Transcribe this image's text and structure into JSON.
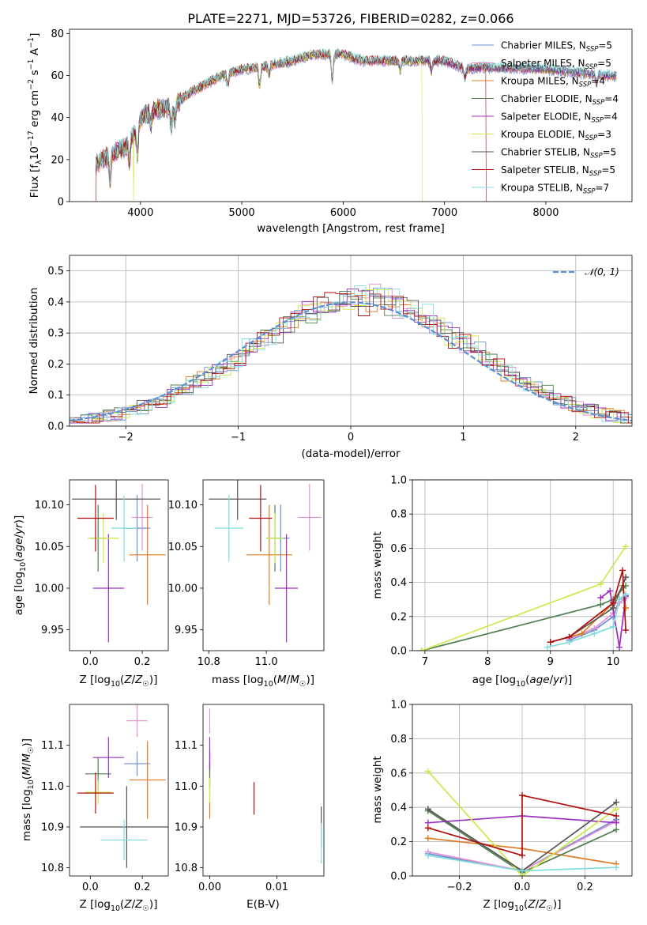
{
  "figure": {
    "title": "PLATE=2271, MJD=53726, FIBERID=0282, z=0.066",
    "colors": {
      "Chabrier MILES": "#6b8fd6",
      "Salpeter MILES": "#e58fd0",
      "Kroupa MILES": "#e07b20",
      "Chabrier ELODIE": "#4f7f4f",
      "Salpeter ELODIE": "#9b30c0",
      "Kroupa ELODIE": "#cde84a",
      "Chabrier STELIB": "#555555",
      "Salpeter STELIB": "#b01010",
      "Kroupa STELIB": "#80dcdc"
    }
  },
  "chart_data": [
    {
      "id": "spectrum",
      "type": "line",
      "xlabel": "wavelength [Angstrom, rest frame]",
      "ylabel": "Flux [fλ10⁻¹⁷ erg cm⁻² s⁻¹ A⁻¹]",
      "xlim": [
        3300,
        8850
      ],
      "ylim": [
        0,
        82
      ],
      "xticks": [
        4000,
        5000,
        6000,
        7000,
        8000
      ],
      "yticks": [
        0,
        20,
        40,
        60,
        80
      ],
      "legend_position": "top-right",
      "legend": [
        {
          "name": "Chabrier MILES",
          "n": "5"
        },
        {
          "name": "Salpeter MILES",
          "n": "5"
        },
        {
          "name": "Kroupa MILES",
          "n": "4"
        },
        {
          "name": "Chabrier ELODIE",
          "n": "4"
        },
        {
          "name": "Salpeter ELODIE",
          "n": "4"
        },
        {
          "name": "Kroupa ELODIE",
          "n": "3"
        },
        {
          "name": "Chabrier STELIB",
          "n": "5"
        },
        {
          "name": "Salpeter STELIB",
          "n": "5"
        },
        {
          "name": "Kroupa STELIB",
          "n": "7"
        }
      ],
      "legend_prefix": "N",
      "legend_sub": "SSP",
      "continuum": [
        [
          3560,
          18
        ],
        [
          3700,
          22
        ],
        [
          3850,
          26
        ],
        [
          3950,
          33
        ],
        [
          4000,
          40
        ],
        [
          4150,
          44
        ],
        [
          4300,
          45
        ],
        [
          4500,
          52
        ],
        [
          4800,
          60
        ],
        [
          5000,
          63
        ],
        [
          5200,
          64
        ],
        [
          5500,
          67
        ],
        [
          5700,
          70
        ],
        [
          6000,
          70
        ],
        [
          6200,
          67
        ],
        [
          6500,
          67
        ],
        [
          6800,
          67
        ],
        [
          7000,
          67
        ],
        [
          7200,
          63
        ],
        [
          7400,
          64
        ],
        [
          8000,
          63
        ],
        [
          8600,
          60
        ]
      ],
      "absorption_lines": [
        [
          3700,
          12
        ],
        [
          3890,
          10
        ],
        [
          3970,
          14
        ],
        [
          4102,
          7
        ],
        [
          4305,
          10
        ],
        [
          4340,
          8
        ],
        [
          4861,
          6
        ],
        [
          5175,
          9
        ],
        [
          5270,
          4
        ],
        [
          5893,
          12
        ],
        [
          6563,
          5
        ],
        [
          6870,
          5
        ],
        [
          7200,
          4
        ],
        [
          8500,
          4
        ]
      ],
      "dropouts": [
        {
          "series": "Kroupa ELODIE",
          "start": 3930,
          "end": 6780
        },
        {
          "series": "Salpeter STELIB",
          "start": 3560,
          "end": 7410
        }
      ]
    },
    {
      "id": "residuals",
      "type": "histogram",
      "xlabel": "(data-model)/error",
      "ylabel": "Normed distribution",
      "xlim": [
        -2.5,
        2.5
      ],
      "ylim": [
        0,
        0.55
      ],
      "xticks": [
        -2,
        -1,
        0,
        1,
        2
      ],
      "yticks": [
        0.0,
        0.1,
        0.2,
        0.3,
        0.4,
        0.5
      ],
      "bin_width": 0.1,
      "grid": true,
      "legend_position": "top-right",
      "reference_curve": {
        "name": "𝒩(0, 1)",
        "color": "#5b8fd8",
        "mean": 0,
        "sigma": 1
      }
    },
    {
      "id": "age-vs-Z",
      "type": "errorbar",
      "xlabel": "Z [log10(Z/Z☉)]",
      "ylabel": "age  [log10(age/yr)]",
      "xlim": [
        -0.08,
        0.3
      ],
      "ylim": [
        9.925,
        10.13
      ],
      "xticks": [
        0.0,
        0.2
      ],
      "yticks": [
        9.95,
        10.0,
        10.05,
        10.1
      ],
      "grid": false,
      "points": [
        {
          "series": "Chabrier MILES",
          "x": 0.18,
          "xerr": 0.05,
          "y": 10.072,
          "yerr": 0.04
        },
        {
          "series": "Salpeter MILES",
          "x": 0.2,
          "xerr": 0.04,
          "y": 10.085,
          "yerr": 0.04
        },
        {
          "series": "Kroupa MILES",
          "x": 0.22,
          "xerr": 0.07,
          "y": 10.04,
          "yerr": 0.06
        },
        {
          "series": "Chabrier ELODIE",
          "x": 0.03,
          "xerr": 0.03,
          "y": 10.06,
          "yerr": 0.04
        },
        {
          "series": "Salpeter ELODIE",
          "x": 0.07,
          "xerr": 0.06,
          "y": 10.0,
          "yerr": 0.065
        },
        {
          "series": "Kroupa ELODIE",
          "x": 0.05,
          "xerr": 0.06,
          "y": 10.06,
          "yerr": 0.03
        },
        {
          "series": "Chabrier STELIB",
          "x": 0.1,
          "xerr": 0.17,
          "y": 10.107,
          "yerr": 0.025
        },
        {
          "series": "Salpeter STELIB",
          "x": 0.02,
          "xerr": 0.07,
          "y": 10.084,
          "yerr": 0.04
        },
        {
          "series": "Kroupa STELIB",
          "x": 0.13,
          "xerr": 0.05,
          "y": 10.072,
          "yerr": 0.04
        }
      ]
    },
    {
      "id": "age-vs-mass",
      "type": "errorbar",
      "xlabel": "mass [log10(M/M☉)]",
      "ylabel": "",
      "xlim": [
        10.78,
        11.2
      ],
      "ylim": [
        9.925,
        10.13
      ],
      "xticks": [
        10.8,
        11.0
      ],
      "yticks": [
        9.95,
        10.0,
        10.05,
        10.1
      ],
      "grid": false,
      "points": [
        {
          "series": "Chabrier MILES",
          "x": 11.05,
          "xerr": 0.03,
          "y": 10.06,
          "yerr": 0.04
        },
        {
          "series": "Salpeter MILES",
          "x": 11.15,
          "xerr": 0.04,
          "y": 10.085,
          "yerr": 0.04
        },
        {
          "series": "Kroupa MILES",
          "x": 11.01,
          "xerr": 0.08,
          "y": 10.04,
          "yerr": 0.06
        },
        {
          "series": "Chabrier ELODIE",
          "x": 11.03,
          "xerr": 0.03,
          "y": 10.06,
          "yerr": 0.04
        },
        {
          "series": "Salpeter ELODIE",
          "x": 11.07,
          "xerr": 0.04,
          "y": 10.0,
          "yerr": 0.065
        },
        {
          "series": "Kroupa ELODIE",
          "x": 11.03,
          "xerr": 0.03,
          "y": 10.06,
          "yerr": 0.03
        },
        {
          "series": "Chabrier STELIB",
          "x": 10.9,
          "xerr": 0.1,
          "y": 10.107,
          "yerr": 0.025
        },
        {
          "series": "Salpeter STELIB",
          "x": 10.98,
          "xerr": 0.04,
          "y": 10.084,
          "yerr": 0.04
        },
        {
          "series": "Kroupa STELIB",
          "x": 10.87,
          "xerr": 0.05,
          "y": 10.072,
          "yerr": 0.04
        }
      ]
    },
    {
      "id": "weight-vs-age",
      "type": "line",
      "xlabel": "age  [log10(age/yr)]",
      "ylabel": "mass weight",
      "xlim": [
        6.8,
        10.3
      ],
      "ylim": [
        0,
        1
      ],
      "xticks": [
        7,
        8,
        9,
        10
      ],
      "yticks": [
        0.0,
        0.2,
        0.4,
        0.6,
        0.8,
        1.0
      ],
      "grid": true,
      "series": [
        {
          "name": "Chabrier MILES",
          "points": [
            [
              9.3,
              0.06
            ],
            [
              9.7,
              0.12
            ],
            [
              10.0,
              0.2
            ],
            [
              10.1,
              0.3
            ],
            [
              10.2,
              0.32
            ]
          ]
        },
        {
          "name": "Salpeter MILES",
          "points": [
            [
              9.3,
              0.07
            ],
            [
              9.7,
              0.13
            ],
            [
              10.0,
              0.22
            ],
            [
              10.1,
              0.28
            ],
            [
              10.2,
              0.31
            ]
          ]
        },
        {
          "name": "Kroupa MILES",
          "points": [
            [
              9.0,
              0.05
            ],
            [
              9.5,
              0.1
            ],
            [
              10.0,
              0.28
            ],
            [
              10.15,
              0.38
            ],
            [
              10.2,
              0.25
            ]
          ]
        },
        {
          "name": "Chabrier ELODIE",
          "points": [
            [
              6.95,
              0.0
            ],
            [
              9.8,
              0.27
            ],
            [
              10.0,
              0.3
            ],
            [
              10.2,
              0.38
            ]
          ]
        },
        {
          "name": "Salpeter ELODIE",
          "points": [
            [
              9.8,
              0.31
            ],
            [
              9.95,
              0.35
            ],
            [
              10.1,
              0.02
            ],
            [
              10.2,
              0.32
            ]
          ]
        },
        {
          "name": "Kroupa ELODIE",
          "points": [
            [
              6.95,
              0.0
            ],
            [
              9.8,
              0.39
            ],
            [
              10.2,
              0.61
            ]
          ]
        },
        {
          "name": "Chabrier STELIB",
          "points": [
            [
              9.0,
              0.05
            ],
            [
              9.3,
              0.08
            ],
            [
              10.0,
              0.25
            ],
            [
              10.2,
              0.43
            ]
          ]
        },
        {
          "name": "Salpeter STELIB",
          "points": [
            [
              9.0,
              0.05
            ],
            [
              9.3,
              0.08
            ],
            [
              10.0,
              0.28
            ],
            [
              10.15,
              0.47
            ],
            [
              10.2,
              0.12
            ]
          ]
        },
        {
          "name": "Kroupa STELIB",
          "points": [
            [
              8.95,
              0.02
            ],
            [
              9.3,
              0.05
            ],
            [
              9.7,
              0.1
            ],
            [
              10.0,
              0.14
            ],
            [
              10.1,
              0.3
            ],
            [
              10.2,
              0.33
            ]
          ]
        }
      ]
    },
    {
      "id": "mass-vs-Z",
      "type": "errorbar",
      "xlabel": "Z [log10(Z/Z☉)]",
      "ylabel": "mass [log10(M/M☉)]",
      "xlim": [
        -0.08,
        0.3
      ],
      "ylim": [
        10.78,
        11.2
      ],
      "xticks": [
        0.0,
        0.2
      ],
      "yticks": [
        10.8,
        10.9,
        11.0,
        11.1
      ],
      "grid": false,
      "points": [
        {
          "series": "Chabrier MILES",
          "x": 0.18,
          "xerr": 0.05,
          "y": 11.055,
          "yerr": 0.03
        },
        {
          "series": "Salpeter MILES",
          "x": 0.18,
          "xerr": 0.04,
          "y": 11.16,
          "yerr": 0.04
        },
        {
          "series": "Kroupa MILES",
          "x": 0.22,
          "xerr": 0.07,
          "y": 11.015,
          "yerr": 0.095
        },
        {
          "series": "Chabrier ELODIE",
          "x": 0.03,
          "xerr": 0.05,
          "y": 11.03,
          "yerr": 0.04
        },
        {
          "series": "Salpeter ELODIE",
          "x": 0.07,
          "xerr": 0.06,
          "y": 11.07,
          "yerr": 0.05
        },
        {
          "series": "Kroupa ELODIE",
          "x": 0.03,
          "xerr": 0.05,
          "y": 10.985,
          "yerr": 0.03
        },
        {
          "series": "Chabrier STELIB",
          "x": 0.14,
          "xerr": 0.18,
          "y": 10.9,
          "yerr": 0.1
        },
        {
          "series": "Salpeter STELIB",
          "x": 0.02,
          "xerr": 0.07,
          "y": 10.983,
          "yerr": 0.05
        },
        {
          "series": "Kroupa STELIB",
          "x": 0.13,
          "xerr": 0.09,
          "y": 10.868,
          "yerr": 0.05
        }
      ]
    },
    {
      "id": "mass-vs-ebv",
      "type": "errorbar",
      "xlabel": "E(B-V)",
      "ylabel": "",
      "xlim": [
        -0.001,
        0.017
      ],
      "ylim": [
        10.78,
        11.2
      ],
      "xticks": [
        0.0,
        0.01
      ],
      "yticks": [
        10.8,
        10.9,
        11.0,
        11.1
      ],
      "grid": false,
      "points": [
        {
          "series": "Chabrier MILES",
          "x": 0.0,
          "xerr": 0,
          "y": 11.06,
          "yerr": 0.03
        },
        {
          "series": "Salpeter MILES",
          "x": 0.0,
          "xerr": 0,
          "y": 11.16,
          "yerr": 0.03
        },
        {
          "series": "Kroupa MILES",
          "x": 0.0,
          "xerr": 0,
          "y": 11.0,
          "yerr": 0.08
        },
        {
          "series": "Chabrier ELODIE",
          "x": 0.0,
          "xerr": 0,
          "y": 11.03,
          "yerr": 0.03
        },
        {
          "series": "Salpeter ELODIE",
          "x": 0.0,
          "xerr": 0,
          "y": 11.08,
          "yerr": 0.04
        },
        {
          "series": "Kroupa ELODIE",
          "x": 0.0,
          "xerr": 0,
          "y": 10.99,
          "yerr": 0.03
        },
        {
          "series": "Chabrier STELIB",
          "x": 0.0166,
          "xerr": 0,
          "y": 10.9,
          "yerr": 0.05
        },
        {
          "series": "Salpeter STELIB",
          "x": 0.0066,
          "xerr": 0,
          "y": 10.97,
          "yerr": 0.04
        },
        {
          "series": "Kroupa STELIB",
          "x": 0.0166,
          "xerr": 0,
          "y": 10.86,
          "yerr": 0.05
        }
      ]
    },
    {
      "id": "weight-vs-Z",
      "type": "line",
      "xlabel": "Z [log10(Z/Z☉)]",
      "ylabel": "mass weight",
      "xlim": [
        -0.35,
        0.35
      ],
      "ylim": [
        0,
        1
      ],
      "xticks": [
        -0.2,
        0.0,
        0.2
      ],
      "yticks": [
        0.0,
        0.2,
        0.4,
        0.6,
        0.8,
        1.0
      ],
      "grid": true,
      "series": [
        {
          "name": "Chabrier MILES",
          "points": [
            [
              -0.3,
              0.13
            ],
            [
              0.0,
              0.03
            ],
            [
              0.3,
              0.33
            ]
          ]
        },
        {
          "name": "Salpeter MILES",
          "points": [
            [
              -0.3,
              0.14
            ],
            [
              0.0,
              0.03
            ],
            [
              0.3,
              0.32
            ]
          ]
        },
        {
          "name": "Kroupa MILES",
          "points": [
            [
              -0.3,
              0.22
            ],
            [
              0.0,
              0.16
            ],
            [
              0.3,
              0.07
            ]
          ]
        },
        {
          "name": "Chabrier ELODIE",
          "points": [
            [
              -0.3,
              0.38
            ],
            [
              0.0,
              0.02
            ],
            [
              0.3,
              0.27
            ]
          ]
        },
        {
          "name": "Salpeter ELODIE",
          "points": [
            [
              -0.3,
              0.31
            ],
            [
              0.0,
              0.35
            ],
            [
              0.3,
              0.31
            ]
          ]
        },
        {
          "name": "Kroupa ELODIE",
          "points": [
            [
              -0.3,
              0.61
            ],
            [
              0.0,
              0.0
            ],
            [
              0.3,
              0.39
            ]
          ]
        },
        {
          "name": "Chabrier STELIB",
          "points": [
            [
              -0.3,
              0.39
            ],
            [
              0.0,
              0.03
            ],
            [
              0.3,
              0.43
            ]
          ]
        },
        {
          "name": "Salpeter STELIB",
          "points": [
            [
              -0.3,
              0.28
            ],
            [
              0.0,
              0.12
            ],
            [
              0.0,
              0.47
            ],
            [
              0.3,
              0.35
            ]
          ]
        },
        {
          "name": "Kroupa STELIB",
          "points": [
            [
              -0.3,
              0.12
            ],
            [
              0.0,
              0.03
            ],
            [
              0.3,
              0.05
            ]
          ]
        }
      ]
    }
  ]
}
